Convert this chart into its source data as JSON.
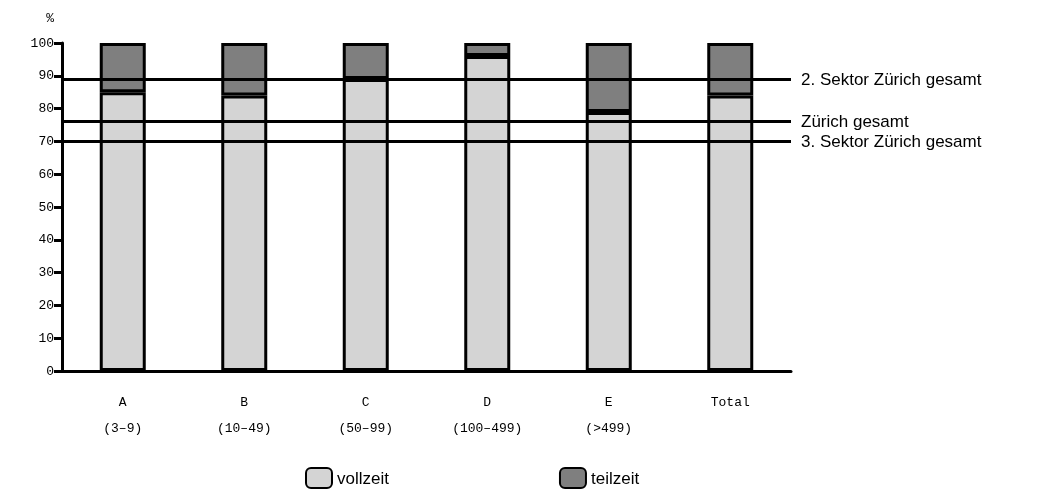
{
  "chart_data": {
    "type": "bar",
    "stacked": true,
    "ylabel": "%",
    "categories": [
      "A\n(3–9)",
      "B\n(10–49)",
      "C\n(50–99)",
      "D\n(100–499)",
      "E\n(>499)",
      "Total"
    ],
    "series": [
      {
        "name": "vollzeit",
        "color": "#d4d4d4",
        "values": [
          85,
          84,
          89,
          96,
          79,
          84
        ]
      },
      {
        "name": "teilzeit",
        "color": "#7f7f7f",
        "values": [
          15,
          16,
          11,
          4,
          21,
          16
        ]
      }
    ],
    "ylim": [
      0,
      100
    ],
    "yticks": [
      0,
      10,
      20,
      30,
      40,
      50,
      60,
      70,
      80,
      90,
      100
    ],
    "ref_lines": [
      {
        "axis": "y",
        "value": 89,
        "label": "2. Sektor Zürich gesamt",
        "color": "#000000",
        "line_style": "solid"
      },
      {
        "axis": "y",
        "value": 76,
        "label": "Zürich gesamt",
        "color": "#000000",
        "line_style": "solid"
      },
      {
        "axis": "y",
        "value": 70,
        "label": "3. Sektor Zürich gesamt",
        "color": "#000000",
        "line_style": "solid"
      }
    ],
    "grid": false,
    "legend": "bottom"
  }
}
